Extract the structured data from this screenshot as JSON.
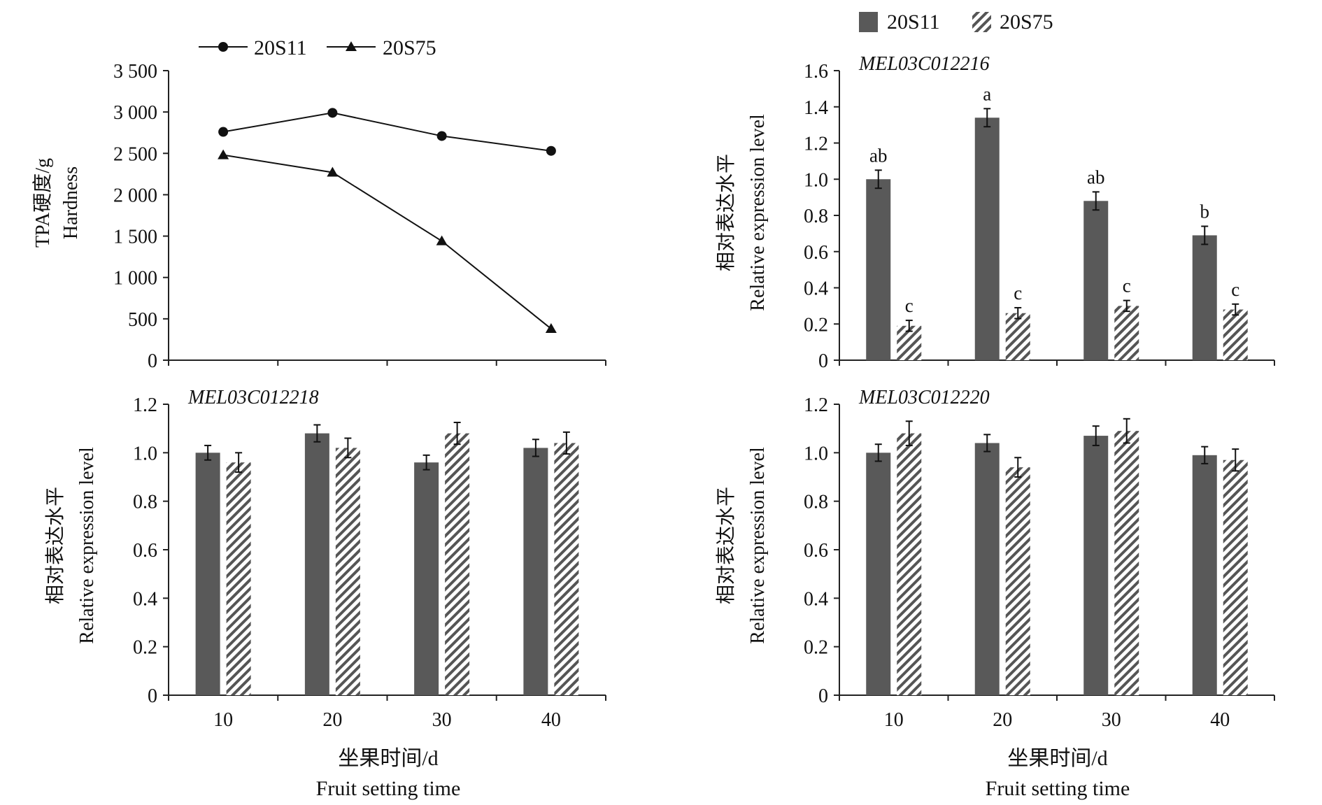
{
  "colors": {
    "dark_bar": "#595959",
    "line": "#111111",
    "hatch": "#555555"
  },
  "legend_top_left": {
    "s1": "20S11",
    "s2": "20S75"
  },
  "legend_top_right": {
    "s1": "20S11",
    "s2": "20S75"
  },
  "x_title": {
    "cn": "坐果时间/d",
    "en": "Fruit setting time"
  },
  "y_title_expr": {
    "cn": "相对表达水平",
    "en": "Relative expression level"
  },
  "y_title_hardness": {
    "cn": "TPA硬度/g",
    "en": "Hardness"
  },
  "chart_data": [
    {
      "id": "hardness",
      "type": "line",
      "categories": [
        "10",
        "20",
        "30",
        "40"
      ],
      "ylim": [
        0,
        3500
      ],
      "yticks": [
        "0",
        "500",
        "1 000",
        "1 500",
        "2 000",
        "2 500",
        "3 000",
        "3 500"
      ],
      "ylabel": "TPA硬度/g Hardness",
      "series": [
        {
          "name": "20S11",
          "marker": "circle",
          "values": [
            2760,
            2990,
            2710,
            2530
          ]
        },
        {
          "name": "20S75",
          "marker": "triangle",
          "values": [
            2480,
            2270,
            1440,
            380
          ]
        }
      ],
      "legend": "top"
    },
    {
      "id": "mel012216",
      "type": "bar",
      "title": "MEL03C012216",
      "categories": [
        "10",
        "20",
        "30",
        "40"
      ],
      "ylim": [
        0,
        1.6
      ],
      "yticks": [
        "0",
        "0.2",
        "0.4",
        "0.6",
        "0.8",
        "1.0",
        "1.2",
        "1.4",
        "1.6"
      ],
      "ylabel": "相对表达水平 Relative expression level",
      "series": [
        {
          "name": "20S11",
          "values": [
            1.0,
            1.34,
            0.88,
            0.69
          ],
          "errors": [
            0.05,
            0.05,
            0.05,
            0.05
          ],
          "labels": [
            "ab",
            "a",
            "ab",
            "b"
          ]
        },
        {
          "name": "20S75",
          "values": [
            0.19,
            0.26,
            0.3,
            0.28
          ],
          "errors": [
            0.03,
            0.03,
            0.03,
            0.03
          ],
          "labels": [
            "c",
            "c",
            "c",
            "c"
          ]
        }
      ],
      "legend": "top"
    },
    {
      "id": "mel012218",
      "type": "bar",
      "title": "MEL03C012218",
      "categories": [
        "10",
        "20",
        "30",
        "40"
      ],
      "ylim": [
        0,
        1.2
      ],
      "yticks": [
        "0",
        "0.2",
        "0.4",
        "0.6",
        "0.8",
        "1.0",
        "1.2"
      ],
      "ylabel": "相对表达水平 Relative expression level",
      "series": [
        {
          "name": "20S11",
          "values": [
            1.0,
            1.08,
            0.96,
            1.02
          ],
          "errors": [
            0.03,
            0.035,
            0.03,
            0.035
          ]
        },
        {
          "name": "20S75",
          "values": [
            0.96,
            1.02,
            1.08,
            1.04
          ],
          "errors": [
            0.04,
            0.04,
            0.045,
            0.045
          ]
        }
      ]
    },
    {
      "id": "mel012220",
      "type": "bar",
      "title": "MEL03C012220",
      "categories": [
        "10",
        "20",
        "30",
        "40"
      ],
      "ylim": [
        0,
        1.2
      ],
      "yticks": [
        "0",
        "0.2",
        "0.4",
        "0.6",
        "0.8",
        "1.0",
        "1.2"
      ],
      "ylabel": "相对表达水平 Relative expression level",
      "series": [
        {
          "name": "20S11",
          "values": [
            1.0,
            1.04,
            1.07,
            0.99
          ],
          "errors": [
            0.035,
            0.035,
            0.04,
            0.035
          ]
        },
        {
          "name": "20S75",
          "values": [
            1.08,
            0.94,
            1.09,
            0.97
          ],
          "errors": [
            0.05,
            0.04,
            0.05,
            0.045
          ]
        }
      ]
    }
  ]
}
